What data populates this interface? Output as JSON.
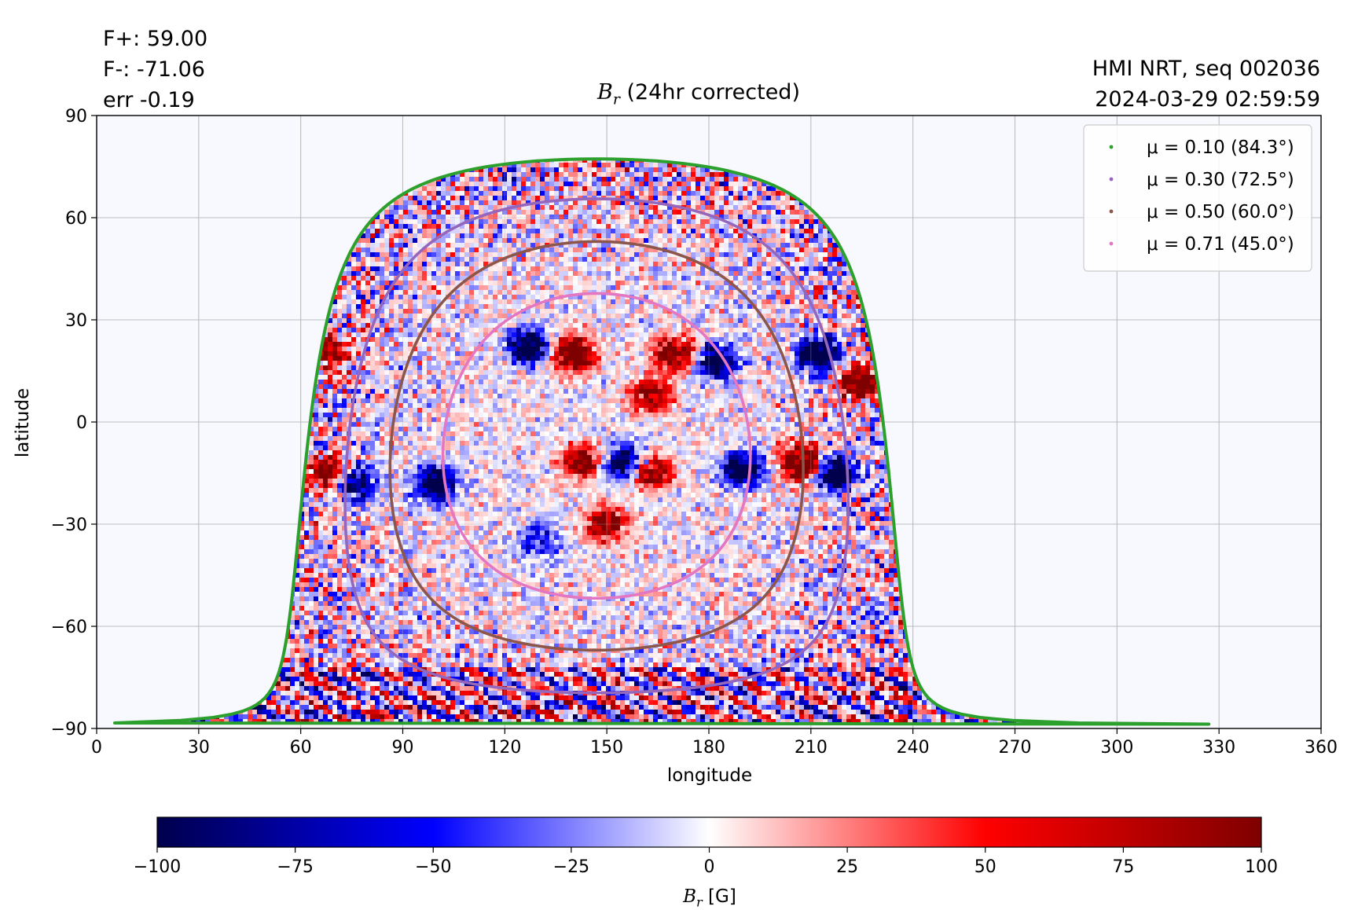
{
  "header": {
    "stats": [
      "F+: 59.00",
      "F-: -71.06",
      "err -0.19"
    ],
    "source": [
      "HMI NRT, seq 002036",
      "2024-03-29 02:59:59"
    ]
  },
  "chart_data": {
    "type": "heatmap",
    "title_symbol": "B",
    "title_subscript": "r",
    "title_rest": " (24hr corrected)",
    "xlabel": "longitude",
    "ylabel": "latitude",
    "xlim": [
      0,
      360
    ],
    "ylim": [
      -90,
      90
    ],
    "xticks": [
      0,
      30,
      60,
      90,
      120,
      150,
      180,
      210,
      240,
      270,
      300,
      330,
      360
    ],
    "yticks": [
      90,
      60,
      30,
      0,
      -30,
      -60,
      -90
    ],
    "ytick_labels": [
      "90",
      "60",
      "30",
      "0",
      "−30",
      "−60",
      "−90"
    ],
    "grid": true,
    "colormap": "seismic",
    "colormap_colors": [
      "#00004c",
      "#0000ff",
      "#ffffff",
      "#ff0000",
      "#7f0000"
    ],
    "clim": [
      -100,
      100
    ],
    "colorbar_ticks": [
      -100,
      -75,
      -50,
      -25,
      0,
      25,
      50,
      75,
      100
    ],
    "colorbar_tick_labels": [
      "−100",
      "−75",
      "−50",
      "−25",
      "0",
      "25",
      "50",
      "75",
      "100"
    ],
    "colorbar_label_symbol": "B",
    "colorbar_label_subscript": "r",
    "colorbar_label_rest": " [G]",
    "disk_center": {
      "lon": 147,
      "lat": -7
    },
    "legend_position": "top-right",
    "series": [
      {
        "name": "μ = 0.10 (84.3°)",
        "mu": 0.1,
        "color": "#2ca02c"
      },
      {
        "name": "μ = 0.30 (72.5°)",
        "mu": 0.3,
        "color": "#9467bd"
      },
      {
        "name": "μ = 0.50 (60.0°)",
        "mu": 0.5,
        "color": "#8c564b"
      },
      {
        "name": "μ = 0.71 (45.0°)",
        "mu": 0.71,
        "color": "#e377c2"
      }
    ],
    "active_regions": [
      {
        "lon": 140,
        "lat": 20,
        "sign": "+",
        "strength": 100
      },
      {
        "lon": 127,
        "lat": 22,
        "sign": "-",
        "strength": 90
      },
      {
        "lon": 170,
        "lat": 20,
        "sign": "+",
        "strength": 80
      },
      {
        "lon": 182,
        "lat": 18,
        "sign": "-",
        "strength": 80
      },
      {
        "lon": 163,
        "lat": 8,
        "sign": "+",
        "strength": 70
      },
      {
        "lon": 212,
        "lat": 20,
        "sign": "-",
        "strength": 100
      },
      {
        "lon": 224,
        "lat": 12,
        "sign": "+",
        "strength": 100
      },
      {
        "lon": 207,
        "lat": -12,
        "sign": "+",
        "strength": 100
      },
      {
        "lon": 218,
        "lat": -15,
        "sign": "-",
        "strength": 100
      },
      {
        "lon": 190,
        "lat": -14,
        "sign": "-",
        "strength": 90
      },
      {
        "lon": 155,
        "lat": -12,
        "sign": "-",
        "strength": 80
      },
      {
        "lon": 143,
        "lat": -12,
        "sign": "+",
        "strength": 70
      },
      {
        "lon": 163,
        "lat": -15,
        "sign": "+",
        "strength": 70
      },
      {
        "lon": 100,
        "lat": -18,
        "sign": "-",
        "strength": 80
      },
      {
        "lon": 68,
        "lat": -15,
        "sign": "+",
        "strength": 70
      },
      {
        "lon": 76,
        "lat": -18,
        "sign": "-",
        "strength": 70
      },
      {
        "lon": 150,
        "lat": -30,
        "sign": "+",
        "strength": 70
      },
      {
        "lon": 130,
        "lat": -35,
        "sign": "-",
        "strength": 40
      },
      {
        "lon": 68,
        "lat": 20,
        "sign": "+",
        "strength": 60
      }
    ]
  }
}
